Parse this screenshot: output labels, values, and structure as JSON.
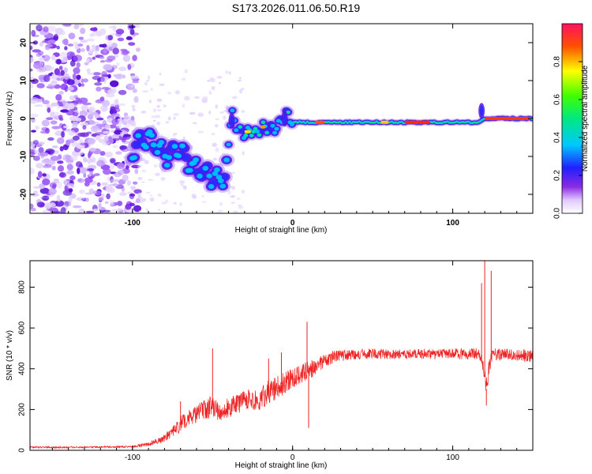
{
  "title": "S173.2026.011.06.50.R19",
  "chart_data": [
    {
      "type": "heatmap",
      "name": "spectrogram",
      "xlabel": "Height of straight line (km)",
      "ylabel": "Frequency (Hz)",
      "xlim": [
        -164,
        150
      ],
      "ylim": [
        -25,
        25
      ],
      "xticks": [
        -100,
        0,
        100
      ],
      "xtick_labels": [
        "-100",
        "0",
        "100"
      ],
      "yticks": [
        -20,
        -10,
        0,
        10,
        20
      ],
      "ytick_labels": [
        "-20",
        "-10",
        "0",
        "10",
        "20"
      ],
      "ridge": {
        "x": [
          -100,
          -92,
          -85,
          -78,
          -72,
          -65,
          -58,
          -52,
          -46,
          -42,
          -40,
          -38,
          -34,
          -30,
          -26,
          -22,
          -18,
          -14,
          -10,
          -6,
          -3,
          0,
          5,
          10,
          20,
          40,
          60,
          80,
          100,
          115,
          120,
          130,
          150
        ],
        "y": [
          -8,
          -5,
          -7,
          -10,
          -7,
          -12,
          -14,
          -15,
          -16,
          -15,
          -6,
          1,
          -3,
          -4,
          -3,
          -4,
          -2,
          -3,
          -2,
          0,
          1,
          -1,
          -1,
          -1,
          -1,
          -1,
          -1,
          -1,
          -1,
          -1,
          0,
          0,
          0
        ]
      },
      "colorbar": {
        "label": "Normalized spectral amplitude",
        "range": [
          0,
          1
        ],
        "ticks": [
          0.0,
          0.2,
          0.4,
          0.6,
          0.8
        ],
        "tick_labels": [
          "0.0",
          "0.2",
          "0.4",
          "0.6",
          "0.8"
        ]
      }
    },
    {
      "type": "line",
      "name": "snr",
      "xlabel": "Height of straight line (km)",
      "ylabel": "SNR (10 * v/v)",
      "xlim": [
        -164,
        150
      ],
      "ylim": [
        0,
        930
      ],
      "xticks": [
        -100,
        0,
        100
      ],
      "xtick_labels": [
        "-100",
        "0",
        "100"
      ],
      "yticks": [
        0,
        200,
        400,
        600,
        800
      ],
      "ytick_labels": [
        "0",
        "200",
        "400",
        "600",
        "800"
      ],
      "color": "#ee2222",
      "x": [
        -164,
        -140,
        -120,
        -100,
        -90,
        -82,
        -76,
        -70,
        -66,
        -60,
        -54,
        -50,
        -46,
        -40,
        -34,
        -28,
        -22,
        -16,
        -10,
        -6,
        -2,
        2,
        6,
        10,
        16,
        20,
        26,
        30,
        40,
        50,
        60,
        70,
        80,
        90,
        100,
        110,
        116,
        119,
        121,
        123,
        125,
        130,
        140,
        150
      ],
      "y": [
        15,
        15,
        16,
        18,
        30,
        55,
        80,
        130,
        150,
        180,
        200,
        220,
        190,
        210,
        230,
        260,
        240,
        280,
        300,
        330,
        350,
        360,
        380,
        390,
        420,
        440,
        460,
        465,
        470,
        475,
        470,
        470,
        475,
        470,
        475,
        470,
        475,
        420,
        300,
        420,
        470,
        470,
        470,
        460
      ],
      "noise": [
        4,
        4,
        4,
        5,
        10,
        18,
        25,
        40,
        40,
        45,
        50,
        60,
        45,
        50,
        50,
        55,
        55,
        60,
        60,
        60,
        55,
        50,
        50,
        45,
        40,
        35,
        30,
        28,
        25,
        25,
        25,
        25,
        25,
        25,
        25,
        28,
        30,
        40,
        60,
        40,
        30,
        30,
        30,
        30
      ],
      "spikes": [
        {
          "x": -70,
          "y": 240
        },
        {
          "x": -50,
          "y": 500
        },
        {
          "x": -35,
          "y": 270
        },
        {
          "x": -15,
          "y": 450
        },
        {
          "x": -7,
          "y": 480
        },
        {
          "x": 9,
          "y": 630
        },
        {
          "x": 10,
          "y": 110
        },
        {
          "x": 118,
          "y": 820
        },
        {
          "x": 120,
          "y": 930
        },
        {
          "x": 121,
          "y": 220
        },
        {
          "x": 124,
          "y": 880
        }
      ]
    }
  ]
}
